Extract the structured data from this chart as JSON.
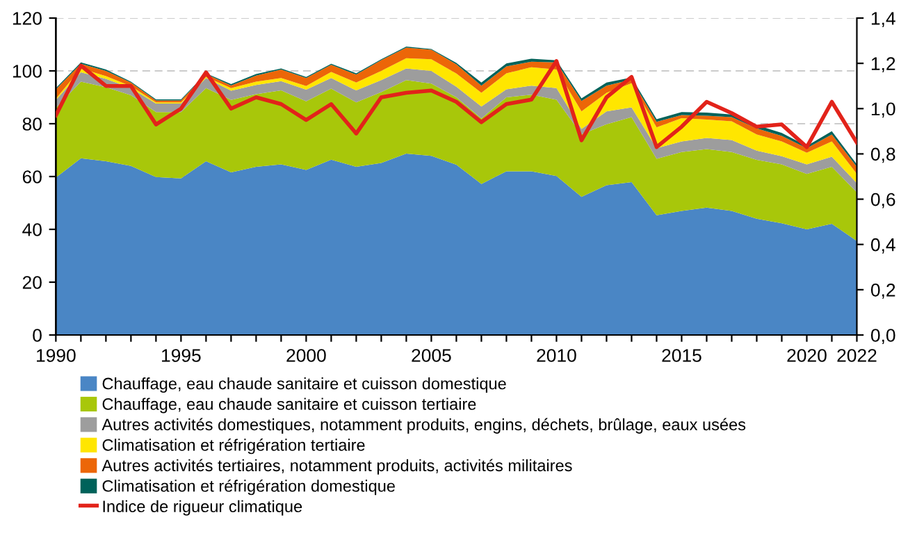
{
  "chart_data": {
    "type": "area",
    "stacked": true,
    "x": [
      1990,
      1991,
      1992,
      1993,
      1994,
      1995,
      1996,
      1997,
      1998,
      1999,
      2000,
      2001,
      2002,
      2003,
      2004,
      2005,
      2006,
      2007,
      2008,
      2009,
      2010,
      2011,
      2012,
      2013,
      2014,
      2015,
      2016,
      2017,
      2018,
      2019,
      2020,
      2021,
      2022
    ],
    "series": [
      {
        "name": "Chauffage, eau chaude sanitaire et cuisson domestique",
        "color": "#4a86c5",
        "values": [
          59.6,
          66.9,
          65.8,
          64.0,
          59.8,
          59.3,
          65.8,
          61.6,
          63.7,
          64.6,
          62.5,
          66.4,
          63.7,
          65.1,
          68.7,
          67.8,
          64.5,
          57.2,
          62.0,
          62.0,
          60.2,
          52.3,
          56.7,
          57.9,
          45.3,
          47.0,
          48.2,
          47.0,
          44.0,
          42.3,
          40.0,
          42.1,
          35.6
        ]
      },
      {
        "name": "Chauffage, eau chaude sanitaire et cuisson tertiaire",
        "color": "#a8c70a",
        "values": [
          26.4,
          29.0,
          28.0,
          26.8,
          24.6,
          25.1,
          27.7,
          27.4,
          27.5,
          28.0,
          26.0,
          26.9,
          24.4,
          26.9,
          27.8,
          27.4,
          25.5,
          24.8,
          28.0,
          29.0,
          28.9,
          23.7,
          23.1,
          24.6,
          21.4,
          22.3,
          22.2,
          22.3,
          22.3,
          22.3,
          21.0,
          21.6,
          18.4
        ]
      },
      {
        "name": "Autres activités domestiques, notamment produits, engins, déchets, brûlage, eaux usées",
        "color": "#9d9d9d",
        "values": [
          3.0,
          3.6,
          3.2,
          2.7,
          3.2,
          3.2,
          3.8,
          3.5,
          3.5,
          3.5,
          4.4,
          4.0,
          4.5,
          4.5,
          4.4,
          4.8,
          4.0,
          4.5,
          3.0,
          3.4,
          4.4,
          2.0,
          4.9,
          3.7,
          4.0,
          4.0,
          4.2,
          4.5,
          3.5,
          3.1,
          3.6,
          3.8,
          3.5
        ]
      },
      {
        "name": "Climatisation et réfrigération tertiaire",
        "color": "#ffe600",
        "values": [
          0.5,
          1.4,
          1.0,
          0.7,
          0.5,
          0.5,
          0.4,
          1.0,
          1.2,
          1.2,
          1.4,
          2.3,
          3.0,
          3.5,
          3.9,
          4.4,
          5.0,
          5.2,
          6.1,
          7.0,
          7.0,
          6.7,
          7.0,
          9.1,
          7.9,
          8.8,
          7.0,
          7.1,
          6.1,
          5.6,
          4.4,
          5.8,
          3.5
        ]
      },
      {
        "name": "Autres activités tertiaires, notamment produits, activités militaires",
        "color": "#ec6608",
        "values": [
          3.5,
          1.8,
          2.0,
          1.4,
          0.7,
          0.7,
          1.1,
          1.0,
          2.3,
          3.2,
          3.0,
          2.7,
          3.0,
          4.1,
          4.0,
          3.6,
          3.5,
          2.7,
          2.6,
          2.1,
          2.7,
          3.9,
          2.7,
          1.4,
          2.1,
          1.2,
          1.4,
          1.6,
          2.3,
          2.1,
          1.7,
          2.6,
          2.7
        ]
      },
      {
        "name": "Climatisation et réfrigération domestique",
        "color": "#00625a",
        "values": [
          0.5,
          0.5,
          0.5,
          0.3,
          0.4,
          0.4,
          0.3,
          0.5,
          0.6,
          0.4,
          0.4,
          0.4,
          0.5,
          0.3,
          0.4,
          0.3,
          0.5,
          1.2,
          1.1,
          1.1,
          0.8,
          1.0,
          1.2,
          0.8,
          1.0,
          1.1,
          1.2,
          1.0,
          1.3,
          1.1,
          0.9,
          1.3,
          0.9
        ]
      },
      {
        "name": "Indice de rigueur climatique",
        "type": "line",
        "axis": "y2",
        "color": "#e2231a",
        "values": [
          0.97,
          1.19,
          1.1,
          1.1,
          0.93,
          1.0,
          1.16,
          1.0,
          1.05,
          1.02,
          0.95,
          1.02,
          0.89,
          1.05,
          1.07,
          1.08,
          1.03,
          0.94,
          1.02,
          1.04,
          1.21,
          0.86,
          1.05,
          1.14,
          0.83,
          0.92,
          1.03,
          0.98,
          0.92,
          0.93,
          0.83,
          1.03,
          0.85
        ]
      }
    ],
    "xlim": [
      1990,
      2022
    ],
    "xticks": [
      1990,
      {
        "value": 1991,
        "label": null
      },
      {
        "value": 1992,
        "label": null
      },
      {
        "value": 1993,
        "label": null
      },
      {
        "value": 1994,
        "label": null
      },
      1995,
      {
        "value": 1996,
        "label": null
      },
      {
        "value": 1997,
        "label": null
      },
      {
        "value": 1998,
        "label": null
      },
      {
        "value": 1999,
        "label": null
      },
      2000,
      {
        "value": 2001,
        "label": null
      },
      {
        "value": 2002,
        "label": null
      },
      {
        "value": 2003,
        "label": null
      },
      {
        "value": 2004,
        "label": null
      },
      2005,
      {
        "value": 2006,
        "label": null
      },
      {
        "value": 2007,
        "label": null
      },
      {
        "value": 2008,
        "label": null
      },
      {
        "value": 2009,
        "label": null
      },
      2010,
      {
        "value": 2011,
        "label": null
      },
      {
        "value": 2012,
        "label": null
      },
      {
        "value": 2013,
        "label": null
      },
      {
        "value": 2014,
        "label": null
      },
      2015,
      {
        "value": 2016,
        "label": null
      },
      {
        "value": 2017,
        "label": null
      },
      {
        "value": 2018,
        "label": null
      },
      {
        "value": 2019,
        "label": null
      },
      2020,
      {
        "value": 2021,
        "label": null
      },
      2022
    ],
    "ylim": [
      0,
      120
    ],
    "yticks": [
      0,
      20,
      40,
      60,
      80,
      100,
      120
    ],
    "y2lim": [
      0,
      1.4
    ],
    "y2ticks": [
      {
        "value": 0,
        "label": "0,0"
      },
      {
        "value": 0.2,
        "label": "0,2"
      },
      {
        "value": 0.4,
        "label": "0,4"
      },
      {
        "value": 0.6,
        "label": "0,6"
      },
      {
        "value": 0.8,
        "label": "0,8"
      },
      {
        "value": 1.0,
        "label": "1,0"
      },
      {
        "value": 1.2,
        "label": "1,2"
      },
      {
        "value": 1.4,
        "label": "1,4"
      }
    ],
    "grid": "y",
    "legend": "bottom",
    "line_style": "solid",
    "marker": "none"
  }
}
